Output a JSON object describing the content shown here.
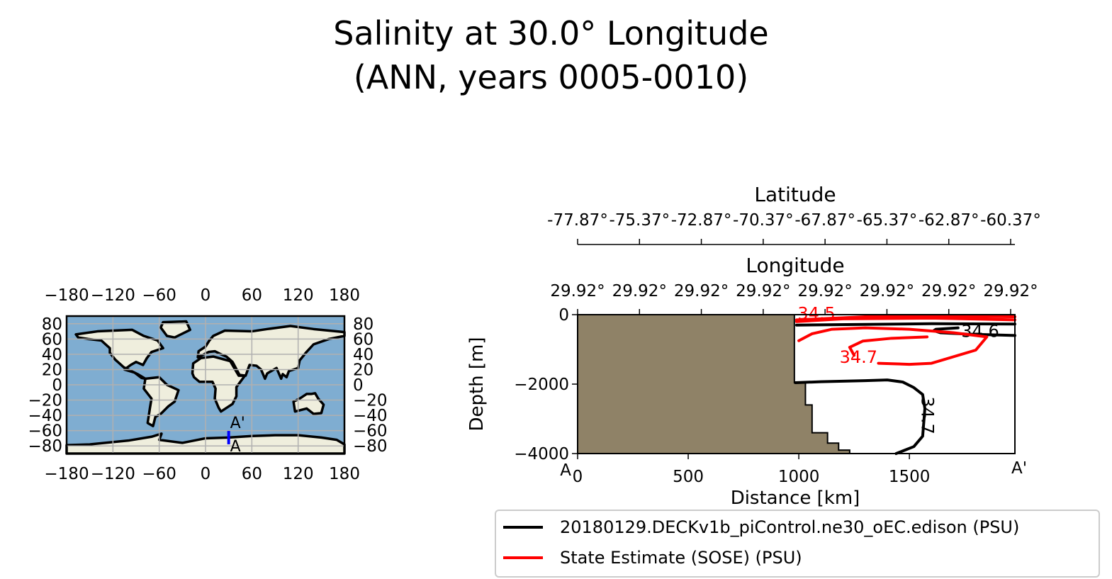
{
  "title": {
    "line1": "Salinity at 30.0° Longitude",
    "line2": "(ANN, years 0005-0010)"
  },
  "chart_data": [
    {
      "type": "map",
      "projection": "PlateCarree",
      "lon_ticks": [
        "−180",
        "−120",
        "−60",
        "0",
        "60",
        "120",
        "180"
      ],
      "lat_ticks": [
        "80",
        "60",
        "40",
        "20",
        "0",
        "−20",
        "−40",
        "−60",
        "−80"
      ],
      "lon_range": [
        -180,
        180
      ],
      "lat_range": [
        -90,
        90
      ],
      "grid": true,
      "transect": {
        "lon": 30.0,
        "lat_start": -77.87,
        "lat_end": -60.37,
        "color": "#0000ff",
        "start_label": "A",
        "end_label": "A'"
      },
      "colors": {
        "ocean": "#7fadd1",
        "land": "#efeedd",
        "grid": "#b0b0b0"
      }
    },
    {
      "type": "contour",
      "xlabel": "Distance [km]",
      "ylabel": "Depth [m]",
      "xlim": [
        0,
        1977
      ],
      "ylim": [
        -4000,
        0
      ],
      "x_ticks": [
        "0",
        "500",
        "1000",
        "1500"
      ],
      "x_tick_values": [
        0,
        500,
        1000,
        1500
      ],
      "y_ticks": [
        "0",
        "−2000",
        "−4000"
      ],
      "y_tick_values": [
        0,
        -2000,
        -4000
      ],
      "start_label": "A",
      "end_label": "A'",
      "lat_axis": {
        "label": "Latitude",
        "ticks": [
          "-77.87°",
          "-75.37°",
          "-72.87°",
          "-70.37°",
          "-67.87°",
          "-65.37°",
          "-62.87°",
          "-60.37°"
        ]
      },
      "lon_axis": {
        "label": "Longitude",
        "ticks": [
          "29.92°",
          "29.92°",
          "29.92°",
          "29.92°",
          "29.92°",
          "29.92°",
          "29.92°",
          "29.92°"
        ]
      },
      "land_color": "#8f8267",
      "land_profile": [
        [
          0,
          0
        ],
        [
          980,
          0
        ],
        [
          980,
          -1960
        ],
        [
          1030,
          -1960
        ],
        [
          1030,
          -2600
        ],
        [
          1060,
          -2600
        ],
        [
          1060,
          -3400
        ],
        [
          1130,
          -3400
        ],
        [
          1130,
          -3700
        ],
        [
          1180,
          -3700
        ],
        [
          1180,
          -3900
        ],
        [
          1230,
          -3900
        ],
        [
          1230,
          -4000
        ],
        [
          0,
          -4000
        ]
      ],
      "series": [
        {
          "name": "20180129.DECKv1b_piControl.ne30_oEC.edison (PSU)",
          "color": "#000000",
          "contours": [
            {
              "level": "34.6",
              "points": [
                [
                  990,
                  -300
                ],
                [
                  1300,
                  -280
                ],
                [
                  1600,
                  -260
                ],
                [
                  1977,
                  -270
                ]
              ]
            },
            {
              "level": "34.6",
              "points": [
                [
                  1720,
                  -380
                ],
                [
                  1620,
                  -420
                ],
                [
                  1610,
                  -460
                ],
                [
                  1640,
                  -520
                ],
                [
                  1760,
                  -560
                ],
                [
                  1977,
                  -600
                ]
              ],
              "label_at": [
                1820,
                -640
              ]
            },
            {
              "level": "34.7",
              "points": [
                [
                  985,
                  -1960
                ],
                [
                  1100,
                  -1930
                ],
                [
                  1300,
                  -1900
                ],
                [
                  1400,
                  -1880
                ],
                [
                  1470,
                  -1940
                ],
                [
                  1520,
                  -2100
                ],
                [
                  1560,
                  -2300
                ],
                [
                  1570,
                  -2700
                ],
                [
                  1560,
                  -3500
                ],
                [
                  1520,
                  -3800
                ],
                [
                  1440,
                  -4000
                ]
              ],
              "label_at": [
                1555,
                -2900
              ],
              "label_rotation": 90
            }
          ]
        },
        {
          "name": "State Estimate (SOSE) (PSU)",
          "color": "#ff0000",
          "contours": [
            {
              "level": "34.5",
              "points": [
                [
                  990,
                  -150
                ],
                [
                  1300,
                  -60
                ],
                [
                  1700,
                  -50
                ],
                [
                  1977,
                  -60
                ]
              ],
              "label_at": [
                1080,
                -130
              ]
            },
            {
              "level": "34.6",
              "points": [
                [
                  990,
                  -200
                ],
                [
                  1200,
                  -120
                ],
                [
                  1600,
                  -100
                ],
                [
                  1977,
                  -150
                ]
              ]
            },
            {
              "level": "34.7",
              "points": [
                [
                  1000,
                  -750
                ],
                [
                  1060,
                  -550
                ],
                [
                  1150,
                  -420
                ],
                [
                  1300,
                  -380
                ],
                [
                  1500,
                  -420
                ],
                [
                  1700,
                  -520
                ],
                [
                  1850,
                  -640
                ],
                [
                  1800,
                  -1020
                ],
                [
                  1600,
                  -1400
                ],
                [
                  1500,
                  -1430
                ],
                [
                  1360,
                  -1400
                ]
              ],
              "label_at": [
                1270,
                -1390
              ]
            },
            {
              "level": "34.7",
              "points": [
                [
                  1250,
                  -1170
                ],
                [
                  1230,
                  -940
                ],
                [
                  1290,
                  -760
                ],
                [
                  1420,
                  -680
                ],
                [
                  1580,
                  -640
                ]
              ]
            }
          ]
        }
      ],
      "legend": {
        "placement": "lower-right"
      }
    }
  ]
}
